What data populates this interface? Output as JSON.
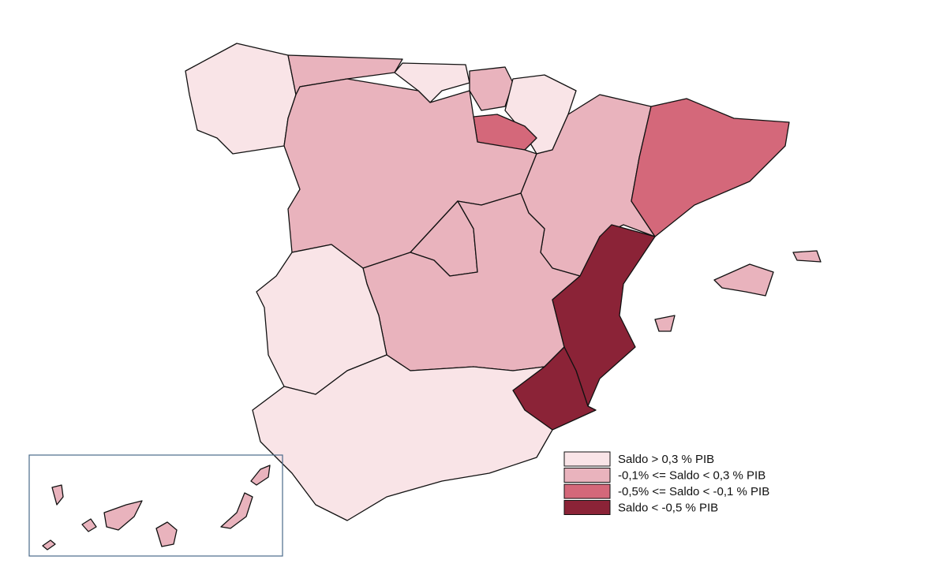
{
  "legend": {
    "items": [
      {
        "label": "Saldo > 0,3 % PIB",
        "color": "#f9e4e7"
      },
      {
        "label": "-0,1% <= Saldo < 0,3 % PIB",
        "color": "#e9b3bd"
      },
      {
        "label": "-0,5% <= Saldo < -0,1 % PIB",
        "color": "#d4687a"
      },
      {
        "label": "Saldo < -0,5 % PIB",
        "color": "#8b2337"
      }
    ]
  }
}
